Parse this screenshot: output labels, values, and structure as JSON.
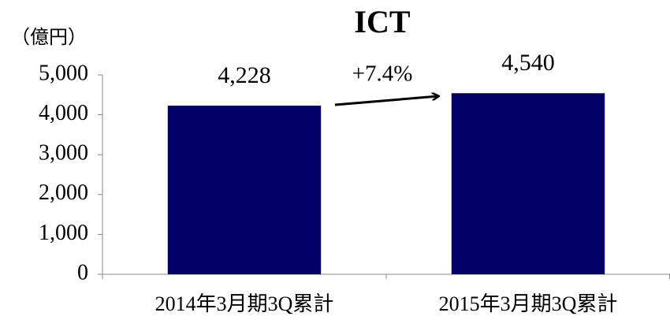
{
  "chart_data": {
    "type": "bar",
    "title": "ICT",
    "y_unit": "（億円）",
    "categories": [
      "2014年3月期3Q累計",
      "2015年3月期3Q累計"
    ],
    "values": [
      4228,
      4540
    ],
    "value_labels": [
      "4,228",
      "4,540"
    ],
    "color": "#000066",
    "annotation": "+7.4%",
    "ylim": [
      0,
      5000
    ],
    "yticks": [
      0,
      {
        "value": 1000,
        "label": "1,000"
      },
      {
        "value": 2000,
        "label": "2,000"
      },
      {
        "value": 3000,
        "label": "3,000"
      },
      {
        "value": 4000,
        "label": "4,000"
      },
      {
        "value": 5000,
        "label": "5,000"
      }
    ],
    "grid": false
  }
}
